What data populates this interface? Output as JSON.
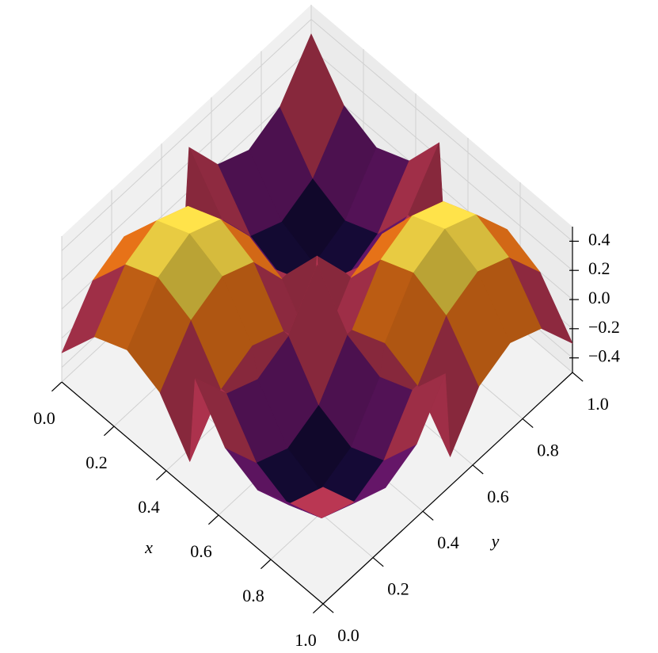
{
  "chart_data": {
    "type": "surface3d",
    "xlabel": "x",
    "ylabel": "y",
    "x": [
      0,
      0.125,
      0.25,
      0.375,
      0.49,
      0.51,
      0.625,
      0.75,
      0.875,
      1
    ],
    "y": [
      0,
      0.125,
      0.25,
      0.375,
      0.49,
      0.51,
      0.625,
      0.75,
      0.875,
      1
    ],
    "z": [
      [
        -0.3,
        0,
        0.1,
        0,
        -0.3,
        0.3,
        0,
        -0.1,
        0,
        0.3
      ],
      [
        0,
        0.3,
        0.4,
        0.3,
        0,
        0,
        -0.3,
        -0.4,
        -0.3,
        0
      ],
      [
        0.1,
        0.4,
        0.5,
        0.4,
        0.1,
        -0.1,
        -0.4,
        -0.5,
        -0.4,
        -0.1
      ],
      [
        0,
        0.3,
        0.4,
        0.3,
        0,
        0,
        -0.3,
        -0.4,
        -0.3,
        0
      ],
      [
        -0.3,
        0,
        0.1,
        0,
        -0.3,
        0.3,
        0,
        -0.1,
        0,
        0.3
      ],
      [
        0.3,
        0,
        -0.1,
        0,
        0.3,
        -0.3,
        0,
        0.1,
        0,
        -0.3
      ],
      [
        0,
        -0.3,
        -0.4,
        -0.3,
        0,
        0,
        0.3,
        0.4,
        0.3,
        0
      ],
      [
        -0.1,
        -0.4,
        -0.5,
        -0.4,
        -0.1,
        0.1,
        0.4,
        0.5,
        0.4,
        0.1
      ],
      [
        0,
        -0.3,
        -0.4,
        -0.3,
        0,
        0,
        0.3,
        0.4,
        0.3,
        0
      ],
      [
        0.3,
        0,
        -0.1,
        0,
        0.3,
        -0.3,
        0,
        0.1,
        0,
        -0.3
      ]
    ],
    "colormap": "inferno",
    "xlim": [
      0,
      1
    ],
    "ylim": [
      0,
      1
    ],
    "zlim": [
      -0.5,
      0.5
    ],
    "xticks": [
      {
        "value": 0,
        "label": "0.0"
      },
      0.2,
      0.4,
      0.6,
      0.8,
      {
        "value": 1,
        "label": "1.0"
      }
    ],
    "yticks": [
      {
        "value": 0,
        "label": "0.0"
      },
      0.2,
      0.4,
      0.6,
      0.8,
      {
        "value": 1,
        "label": "1.0"
      }
    ],
    "zticks": [
      {
        "value": -0.4,
        "label": "−0.4"
      },
      {
        "value": -0.2,
        "label": "−0.2"
      },
      {
        "value": 0,
        "label": "0.0"
      },
      0.2,
      0.4
    ],
    "grid": true
  }
}
